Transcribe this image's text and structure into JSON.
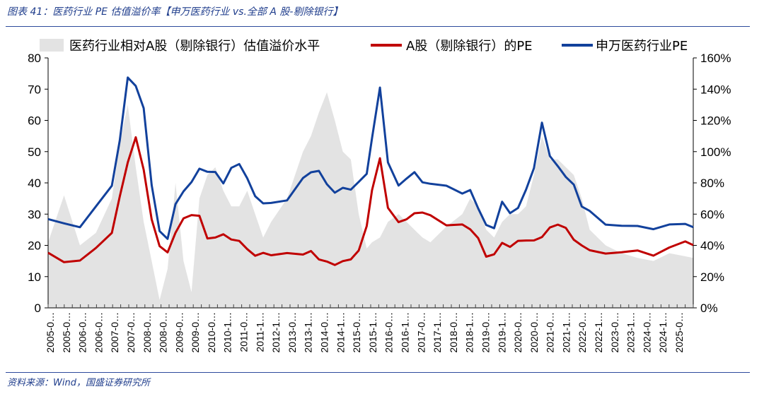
{
  "figure": {
    "title": "图表 41：医药行业 PE 估值溢价率【申万医药行业 vs.全部 A 股-剔除银行】",
    "source": "资料来源：Wind，国盛证券研究所"
  },
  "chart_data": {
    "type": "line",
    "legend_position": "top",
    "grid": false,
    "ylim_left": [
      0,
      80
    ],
    "ylim_right": [
      0,
      1.6
    ],
    "yticks_left": [
      "0",
      "10",
      "20",
      "30",
      "40",
      "50",
      "60",
      "70",
      "80"
    ],
    "yticks_right": [
      "0%",
      "20%",
      "40%",
      "60%",
      "80%",
      "100%",
      "120%",
      "140%",
      "160%"
    ],
    "xticks": [
      "2005-0…",
      "2005-0…",
      "2006-0…",
      "2006-0…",
      "2007-0…",
      "2007-0…",
      "2008-0…",
      "2008-0…",
      "2009-0…",
      "2009-0…",
      "2010-0…",
      "2010-1…",
      "2011-0…",
      "2011-1…",
      "2012-1…",
      "2013-0…",
      "2013-1…",
      "2014-0…",
      "2014-1…",
      "2015-0…",
      "2015-1…",
      "2016-0…",
      "2016-1…",
      "2017-0…",
      "2017-1…",
      "2018-0…",
      "2018-1…",
      "2019-0…",
      "2019-1…",
      "2020-0…",
      "2020-0…",
      "2021-0…",
      "2021-1…",
      "2022-0…",
      "2022-1…",
      "2023-0…",
      "2023-1…",
      "2024-0…",
      "2024-1…",
      "2025-0…"
    ],
    "x": [
      "2005-01",
      "2005-07",
      "2006-01",
      "2006-07",
      "2007-01",
      "2007-04",
      "2007-07",
      "2007-10",
      "2008-01",
      "2008-04",
      "2008-07",
      "2008-10",
      "2009-01",
      "2009-04",
      "2009-07",
      "2009-10",
      "2010-01",
      "2010-04",
      "2010-07",
      "2010-10",
      "2011-01",
      "2011-04",
      "2011-07",
      "2011-10",
      "2012-01",
      "2012-07",
      "2013-01",
      "2013-04",
      "2013-07",
      "2013-10",
      "2014-01",
      "2014-04",
      "2014-07",
      "2014-10",
      "2015-01",
      "2015-03",
      "2015-06",
      "2015-09",
      "2016-01",
      "2016-04",
      "2016-07",
      "2016-10",
      "2017-01",
      "2017-07",
      "2018-01",
      "2018-04",
      "2018-07",
      "2018-10",
      "2019-01",
      "2019-04",
      "2019-07",
      "2019-10",
      "2020-01",
      "2020-04",
      "2020-07",
      "2020-10",
      "2021-01",
      "2021-04",
      "2021-07",
      "2021-10",
      "2022-01",
      "2022-07",
      "2023-01",
      "2023-07",
      "2024-01",
      "2024-07",
      "2025-01",
      "2025-04"
    ],
    "series": [
      {
        "name": "医药行业相对A股（剔除银行）估值溢价水平",
        "axis": "right",
        "style": "area",
        "color": "#e3e3e3",
        "values": [
          0.42,
          0.72,
          0.4,
          0.48,
          0.7,
          1.05,
          1.3,
          0.9,
          0.55,
          0.3,
          0.05,
          0.25,
          0.8,
          0.3,
          0.1,
          0.7,
          0.85,
          0.9,
          0.75,
          0.65,
          0.65,
          0.75,
          0.6,
          0.45,
          0.55,
          0.7,
          1.0,
          1.1,
          1.25,
          1.38,
          1.2,
          1.0,
          0.95,
          0.6,
          0.38,
          0.42,
          0.45,
          0.55,
          0.6,
          0.55,
          0.5,
          0.45,
          0.42,
          0.52,
          0.6,
          0.7,
          0.65,
          0.5,
          0.45,
          0.55,
          0.6,
          0.6,
          0.65,
          0.85,
          1.1,
          0.95,
          0.95,
          0.9,
          0.85,
          0.7,
          0.5,
          0.4,
          0.35,
          0.32,
          0.3,
          0.35,
          0.33,
          0.32
        ]
      },
      {
        "name": "A股（剔除银行）的PE",
        "axis": "left",
        "style": "line",
        "color": "#c00000",
        "values": [
          19,
          16,
          16,
          20,
          25,
          37,
          47,
          54,
          44,
          28,
          20,
          18,
          24,
          30,
          31,
          31,
          23,
          24,
          25,
          23,
          22,
          19,
          17,
          18,
          17,
          17,
          17,
          18,
          17,
          16,
          15,
          16,
          17,
          20,
          27,
          38,
          48,
          32,
          27,
          28,
          30,
          30,
          30,
          28,
          28,
          26,
          23,
          18,
          18,
          22,
          20,
          21,
          21,
          22,
          23,
          26,
          27,
          25,
          23,
          21,
          20,
          18,
          19,
          19,
          18,
          19,
          21,
          20
        ]
      },
      {
        "name": "申万医药行业PE",
        "axis": "left",
        "style": "line",
        "color": "#12419c",
        "values": [
          29,
          27,
          26,
          34,
          40,
          55,
          75,
          72,
          65,
          40,
          26,
          22,
          33,
          37,
          40,
          44,
          43,
          43,
          41,
          46,
          47,
          43,
          37,
          35,
          35,
          36,
          41,
          43,
          44,
          40,
          37,
          39,
          38,
          41,
          44,
          56,
          72,
          48,
          40,
          43,
          44,
          40,
          40,
          39,
          37,
          38,
          32,
          27,
          27,
          35,
          32,
          33,
          39,
          46,
          60,
          48,
          45,
          42,
          39,
          33,
          31,
          27,
          26,
          28,
          26,
          28,
          28,
          27
        ]
      }
    ]
  }
}
